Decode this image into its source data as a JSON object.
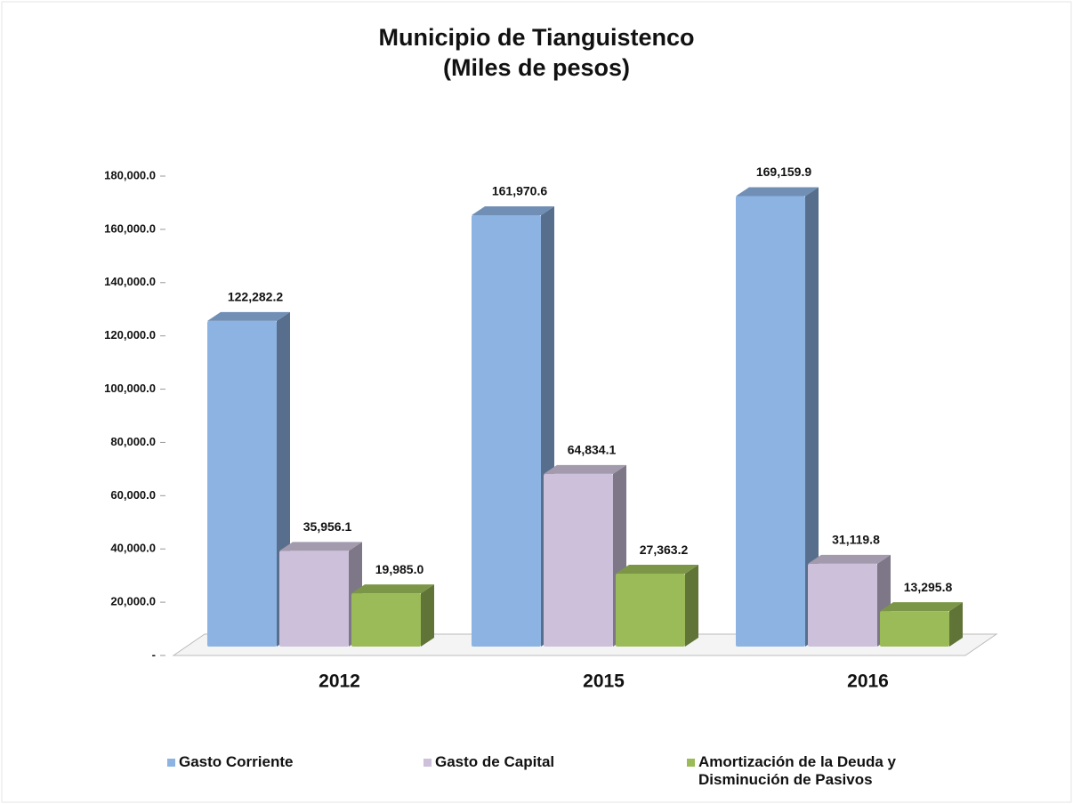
{
  "chart_data": {
    "type": "bar3d",
    "title": "Municipio de Tianguistenco",
    "subtitle": "(Miles de pesos)",
    "categories": [
      "2012",
      "2015",
      "2016"
    ],
    "series": [
      {
        "name": "Gasto Corriente",
        "color": "#8db3e2",
        "values": [
          122282.2,
          161970.6,
          169159.9
        ],
        "value_labels": [
          "122,282.2",
          "161,970.6",
          "169,159.9"
        ]
      },
      {
        "name": "Gasto de Capital",
        "color": "#ccc0da",
        "values": [
          35956.1,
          64834.1,
          31119.8
        ],
        "value_labels": [
          "35,956.1",
          "64,834.1",
          "31,119.8"
        ]
      },
      {
        "name": "Amortización de la Deuda y Disminución de Pasivos",
        "color": "#9bbb59",
        "values": [
          19985.0,
          27363.2,
          13295.8
        ],
        "value_labels": [
          "19,985.0",
          "27,363.2",
          "13,295.8"
        ]
      }
    ],
    "ylim": [
      0,
      180000
    ],
    "yticks": [
      {
        "value": 0,
        "label": "-"
      },
      {
        "value": 20000,
        "label": "20,000.0"
      },
      {
        "value": 40000,
        "label": "40,000.0"
      },
      {
        "value": 60000,
        "label": "60,000.0"
      },
      {
        "value": 80000,
        "label": "80,000.0"
      },
      {
        "value": 100000,
        "label": "100,000.0"
      },
      {
        "value": 120000,
        "label": "120,000.0"
      },
      {
        "value": 140000,
        "label": "140,000.0"
      },
      {
        "value": 160000,
        "label": "160,000.0"
      },
      {
        "value": 180000,
        "label": "180,000.0"
      }
    ],
    "legend": "bottom"
  }
}
